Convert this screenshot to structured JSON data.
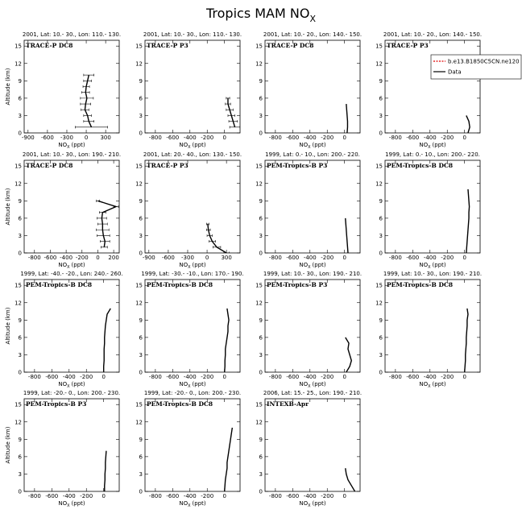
{
  "header": {
    "title": "Tropics MAM NO",
    "title_sub": "X"
  },
  "chart_data": [
    {
      "type": "line",
      "title": "2001, Lat: 10.- 30., Lon: 110.- 130.",
      "label": "TRACE-P DC8",
      "x_label": {
        "text": "NO",
        "sub": "X",
        "unit": "(ppt)"
      },
      "y_label": "Altitude (km)",
      "xlim": [
        -960,
        510
      ],
      "xticks": [
        -900,
        -600,
        -300,
        0,
        300
      ],
      "ylim": [
        0,
        16
      ],
      "yticks": [
        0,
        3,
        6,
        9,
        12,
        15
      ],
      "series": [
        {
          "name": "Data",
          "color": "#000000",
          "x": [
            80,
            40,
            20,
            -20,
            -10,
            10,
            -10,
            0,
            20,
            40
          ],
          "values": [
            1,
            2,
            3,
            4,
            5,
            6,
            7,
            8,
            9,
            10
          ],
          "errors": [
            250,
            80,
            60,
            60,
            80,
            100,
            60,
            50,
            60,
            80
          ]
        }
      ]
    },
    {
      "type": "line",
      "title": "2001, Lat: 10.- 30., Lon: 110.- 130.",
      "label": "TRACE-P P3",
      "x_label": {
        "text": "NO",
        "sub": "X",
        "unit": "(ppt)"
      },
      "xlim": [
        -920,
        180
      ],
      "xticks": [
        -800,
        -600,
        -400,
        -200,
        0
      ],
      "ylim": [
        0,
        16
      ],
      "yticks": [
        0,
        3,
        6,
        9,
        12,
        15
      ],
      "series": [
        {
          "name": "Data",
          "color": "#000000",
          "x": [
            120,
            100,
            80,
            60,
            40,
            40
          ],
          "values": [
            1,
            2,
            3,
            4,
            5,
            6
          ],
          "errors": [
            60,
            50,
            40,
            40,
            30,
            20
          ]
        }
      ]
    },
    {
      "type": "line",
      "title": "2001, Lat: 10.- 20., Lon: 140.- 150.",
      "label": "TRACE-P DC8",
      "x_label": {
        "text": "NO",
        "sub": "X",
        "unit": "(ppt)"
      },
      "xlim": [
        -920,
        180
      ],
      "xticks": [
        -800,
        -600,
        -400,
        -200,
        0
      ],
      "ylim": [
        0,
        16
      ],
      "yticks": [
        0,
        3,
        6,
        9,
        12,
        15
      ],
      "series": [
        {
          "name": "Data",
          "color": "#000000",
          "x": [
            30,
            35,
            35,
            30,
            25,
            20
          ],
          "values": [
            0,
            1,
            2,
            3,
            4,
            5
          ]
        }
      ]
    },
    {
      "type": "line",
      "title": "2001, Lat: 10.- 20., Lon: 140.- 150.",
      "label": "TRACE-P P3",
      "x_label": {
        "text": "NO",
        "sub": "X",
        "unit": "(ppt)"
      },
      "xlim": [
        -920,
        180
      ],
      "xticks": [
        -800,
        -600,
        -400,
        -200,
        0
      ],
      "ylim": [
        0,
        16
      ],
      "yticks": [
        0,
        3,
        6,
        9,
        12,
        15
      ],
      "legend_entries": [
        {
          "name": "b.e13.B1850C5CN.ne120",
          "color": "#e00000",
          "dash": true
        },
        {
          "name": "Data",
          "color": "#000000"
        }
      ],
      "series": [
        {
          "name": "Data",
          "color": "#000000",
          "x": [
            40,
            60,
            50,
            20
          ],
          "values": [
            0,
            1,
            2,
            3
          ]
        }
      ]
    },
    {
      "type": "line",
      "title": "2001, Lat: 10.- 30., Lon: 190.- 210.",
      "label": "TRACE-P DC8",
      "x_label": {
        "text": "NO",
        "sub": "X",
        "unit": "(ppt)"
      },
      "y_label": "Altitude (km)",
      "xlim": [
        -930,
        270
      ],
      "xticks": [
        -800,
        -600,
        -400,
        -200,
        0,
        200
      ],
      "ylim": [
        0,
        16
      ],
      "yticks": [
        0,
        3,
        6,
        9,
        12,
        15
      ],
      "series": [
        {
          "name": "Data",
          "color": "#000000",
          "x": [
            80,
            90,
            70,
            60,
            60,
            50,
            60,
            230,
            0
          ],
          "values": [
            1,
            2,
            3,
            4,
            5,
            6,
            7,
            8,
            9
          ],
          "errors": [
            40,
            60,
            80,
            80,
            60,
            60,
            40,
            30,
            20
          ]
        }
      ]
    },
    {
      "type": "line",
      "title": "2001, Lat: 20.- 40., Lon: 130.- 150.",
      "label": "TRACE-P P3",
      "x_label": {
        "text": "NO",
        "sub": "X",
        "unit": "(ppt)"
      },
      "xlim": [
        -960,
        510
      ],
      "xticks": [
        -900,
        -600,
        -300,
        0,
        300
      ],
      "ylim": [
        0,
        16
      ],
      "yticks": [
        0,
        3,
        6,
        9,
        12,
        15
      ],
      "series": [
        {
          "name": "Data",
          "color": "#000000",
          "x": [
            300,
            150,
            80,
            40,
            20,
            10
          ],
          "values": [
            0,
            1,
            2,
            3,
            4,
            5
          ],
          "errors": [
            40,
            60,
            50,
            40,
            30,
            20
          ]
        }
      ]
    },
    {
      "type": "line",
      "title": "1999, Lat: 0.- 10., Lon: 200.- 220.",
      "label": "PEM-Tropics-B P3",
      "x_label": {
        "text": "NO",
        "sub": "X",
        "unit": "(ppt)"
      },
      "xlim": [
        -920,
        180
      ],
      "xticks": [
        -800,
        -600,
        -400,
        -200,
        0
      ],
      "ylim": [
        0,
        16
      ],
      "yticks": [
        0,
        3,
        6,
        9,
        12,
        15
      ],
      "series": [
        {
          "name": "Data",
          "color": "#000000",
          "x": [
            40,
            35,
            30,
            25,
            20,
            15,
            10
          ],
          "values": [
            0,
            1,
            2,
            3,
            4,
            5,
            6
          ]
        }
      ]
    },
    {
      "type": "line",
      "title": "1999, Lat: 0.- 10., Lon: 200.- 220.",
      "label": "PEM-Tropics-B DC8",
      "x_label": {
        "text": "NO",
        "sub": "X",
        "unit": "(ppt)"
      },
      "xlim": [
        -920,
        180
      ],
      "xticks": [
        -800,
        -600,
        -400,
        -200,
        0
      ],
      "ylim": [
        0,
        16
      ],
      "yticks": [
        0,
        3,
        6,
        9,
        12,
        15
      ],
      "series": [
        {
          "name": "Data",
          "color": "#000000",
          "x": [
            20,
            25,
            30,
            35,
            40,
            45,
            50,
            50,
            55,
            50,
            45,
            40
          ],
          "values": [
            0,
            1,
            2,
            3,
            4,
            5,
            6,
            7,
            8,
            9,
            10,
            11
          ]
        }
      ]
    },
    {
      "type": "line",
      "title": "1999, Lat: -40.- -20., Lon: 240.- 260.",
      "label": "PEM-Tropics-B DC8",
      "x_label": {
        "text": "NO",
        "sub": "X",
        "unit": "(ppt)"
      },
      "y_label": "Altitude (km)",
      "xlim": [
        -920,
        180
      ],
      "xticks": [
        -800,
        -600,
        -400,
        -200,
        0
      ],
      "ylim": [
        0,
        16
      ],
      "yticks": [
        0,
        3,
        6,
        9,
        12,
        15
      ],
      "series": [
        {
          "name": "Data",
          "color": "#000000",
          "x": [
            0,
            0,
            5,
            5,
            5,
            10,
            10,
            15,
            20,
            30,
            40,
            80
          ],
          "values": [
            0,
            1,
            2,
            3,
            4,
            5,
            6,
            7,
            8,
            9,
            10,
            11
          ]
        }
      ]
    },
    {
      "type": "line",
      "title": "1999, Lat: -30.- -10., Lon: 170.- 190.",
      "label": "PEM-Tropics-B DC8",
      "x_label": {
        "text": "NO",
        "sub": "X",
        "unit": "(ppt)"
      },
      "xlim": [
        -920,
        180
      ],
      "xticks": [
        -800,
        -600,
        -400,
        -200,
        0
      ],
      "ylim": [
        0,
        16
      ],
      "yticks": [
        0,
        3,
        6,
        9,
        12,
        15
      ],
      "series": [
        {
          "name": "Data",
          "color": "#000000",
          "x": [
            0,
            5,
            5,
            10,
            10,
            20,
            30,
            40,
            40,
            50,
            40,
            30
          ],
          "values": [
            0,
            1,
            2,
            3,
            4,
            5,
            6,
            7,
            8,
            9,
            10,
            11
          ]
        }
      ]
    },
    {
      "type": "line",
      "title": "1999, Lat: 10.- 30., Lon: 190.- 210.",
      "label": "PEM-Tropics-B P3",
      "x_label": {
        "text": "NO",
        "sub": "X",
        "unit": "(ppt)"
      },
      "xlim": [
        -920,
        180
      ],
      "xticks": [
        -800,
        -600,
        -400,
        -200,
        0
      ],
      "ylim": [
        0,
        16
      ],
      "yticks": [
        0,
        3,
        6,
        9,
        12,
        15
      ],
      "series": [
        {
          "name": "Data",
          "color": "#000000",
          "x": [
            20,
            60,
            80,
            60,
            40,
            50,
            10
          ],
          "values": [
            0,
            1,
            2,
            3,
            4,
            5,
            6
          ]
        }
      ]
    },
    {
      "type": "line",
      "title": "1999, Lat: 10.- 30., Lon: 190.- 210.",
      "label": "PEM-Tropics-B DC8",
      "x_label": {
        "text": "NO",
        "sub": "X",
        "unit": "(ppt)"
      },
      "xlim": [
        -920,
        180
      ],
      "xticks": [
        -800,
        -600,
        -400,
        -200,
        0
      ],
      "ylim": [
        0,
        16
      ],
      "yticks": [
        0,
        3,
        6,
        9,
        12,
        15
      ],
      "series": [
        {
          "name": "Data",
          "color": "#000000",
          "x": [
            0,
            5,
            10,
            10,
            15,
            20,
            20,
            25,
            30,
            30,
            40,
            30
          ],
          "values": [
            0,
            1,
            2,
            3,
            4,
            5,
            6,
            7,
            8,
            9,
            10,
            11
          ]
        }
      ]
    },
    {
      "type": "line",
      "title": "1999, Lat: -20.- 0., Lon: 200.- 230.",
      "label": "PEM-Tropics-B P3",
      "x_label": {
        "text": "NO",
        "sub": "X",
        "unit": "(ppt)"
      },
      "y_label": "Altitude (km)",
      "xlim": [
        -920,
        180
      ],
      "xticks": [
        -800,
        -600,
        -400,
        -200,
        0
      ],
      "ylim": [
        0,
        16
      ],
      "yticks": [
        0,
        3,
        6,
        9,
        12,
        15
      ],
      "series": [
        {
          "name": "Data",
          "color": "#000000",
          "x": [
            10,
            10,
            15,
            15,
            20,
            20,
            25,
            30
          ],
          "values": [
            0,
            1,
            2,
            3,
            4,
            5,
            6,
            7
          ]
        }
      ]
    },
    {
      "type": "line",
      "title": "1999, Lat: -20.- 0., Lon: 200.- 230.",
      "label": "PEM-Tropics-B DC8",
      "x_label": {
        "text": "NO",
        "sub": "X",
        "unit": "(ppt)"
      },
      "xlim": [
        -920,
        180
      ],
      "xticks": [
        -800,
        -600,
        -400,
        -200,
        0
      ],
      "ylim": [
        0,
        16
      ],
      "yticks": [
        0,
        3,
        6,
        9,
        12,
        15
      ],
      "series": [
        {
          "name": "Data",
          "color": "#000000",
          "x": [
            0,
            5,
            10,
            20,
            30,
            30,
            40,
            50,
            60,
            70,
            80,
            90
          ],
          "values": [
            0,
            1,
            2,
            3,
            4,
            5,
            6,
            7,
            8,
            9,
            10,
            11
          ]
        }
      ]
    },
    {
      "type": "line",
      "title": "2006, Lat: 15.- 25., Lon: 190.- 210.",
      "label": "INTEXB-Apr",
      "x_label": {
        "text": "NO",
        "sub": "X",
        "unit": "(ppt)"
      },
      "xlim": [
        -920,
        180
      ],
      "xticks": [
        -800,
        -600,
        -400,
        -200,
        0
      ],
      "ylim": [
        0,
        16
      ],
      "yticks": [
        0,
        3,
        6,
        9,
        12,
        15
      ],
      "series": [
        {
          "name": "Data",
          "color": "#000000",
          "x": [
            120,
            80,
            40,
            20,
            10
          ],
          "values": [
            0,
            1,
            2,
            3,
            4
          ]
        }
      ]
    }
  ]
}
